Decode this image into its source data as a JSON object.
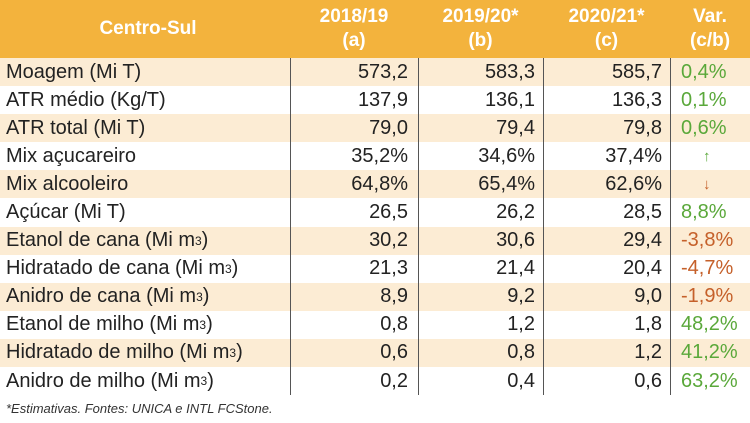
{
  "header": {
    "region": "Centro-Sul",
    "col1": {
      "year": "2018/19",
      "tag": "(a)"
    },
    "col2": {
      "year": "2019/20*",
      "tag": "(b)"
    },
    "col3": {
      "year": "2020/21*",
      "tag": "(c)"
    },
    "col4": {
      "year": "Var.",
      "tag": "(c/b)"
    }
  },
  "rows": [
    {
      "label": "Moagem (Mi T)",
      "sup": "",
      "a": "573,2",
      "b": "583,3",
      "c": "585,7",
      "var": "0,4%",
      "var_kind": "pos"
    },
    {
      "label": "ATR médio (Kg/T)",
      "sup": "",
      "a": "137,9",
      "b": "136,1",
      "c": "136,3",
      "var": "0,1%",
      "var_kind": "pos"
    },
    {
      "label": "ATR total (Mi T)",
      "sup": "",
      "a": "79,0",
      "b": "79,4",
      "c": "79,8",
      "var": "0,6%",
      "var_kind": "pos"
    },
    {
      "label": "Mix açucareiro",
      "sup": "",
      "a": "35,2%",
      "b": "34,6%",
      "c": "37,4%",
      "var": "↑",
      "var_kind": "up"
    },
    {
      "label": "Mix alcooleiro",
      "sup": "",
      "a": "64,8%",
      "b": "65,4%",
      "c": "62,6%",
      "var": "↓",
      "var_kind": "down"
    },
    {
      "label": "Açúcar (Mi T)",
      "sup": "",
      "a": "26,5",
      "b": "26,2",
      "c": "28,5",
      "var": "8,8%",
      "var_kind": "pos"
    },
    {
      "label": "Etanol de cana (Mi m",
      "sup": "3",
      "a": "30,2",
      "b": "30,6",
      "c": "29,4",
      "var": "-3,8%",
      "var_kind": "neg"
    },
    {
      "label": "Hidratado de cana (Mi m",
      "sup": "3",
      "a": "21,3",
      "b": "21,4",
      "c": "20,4",
      "var": "-4,7%",
      "var_kind": "neg"
    },
    {
      "label": "Anidro de cana (Mi m",
      "sup": "3",
      "a": "8,9",
      "b": "9,2",
      "c": "9,0",
      "var": "-1,9%",
      "var_kind": "neg"
    },
    {
      "label": "Etanol de milho (Mi m",
      "sup": "3",
      "a": "0,8",
      "b": "1,2",
      "c": "1,8",
      "var": "48,2%",
      "var_kind": "pos"
    },
    {
      "label": "Hidratado de milho (Mi m",
      "sup": "3",
      "a": "0,6",
      "b": "0,8",
      "c": "1,2",
      "var": "41,2%",
      "var_kind": "pos"
    },
    {
      "label": "Anidro de milho (Mi m",
      "sup": "3",
      "a": "0,2",
      "b": "0,4",
      "c": "0,6",
      "var": "63,2%",
      "var_kind": "pos"
    }
  ],
  "footnote": "*Estimativas.   Fontes: UNICA e INTL FCStone.",
  "colors": {
    "header_bg": "#f3b33d",
    "band_bg": "#fcecd4",
    "positive": "#5aa83a",
    "negative": "#c5602a"
  }
}
